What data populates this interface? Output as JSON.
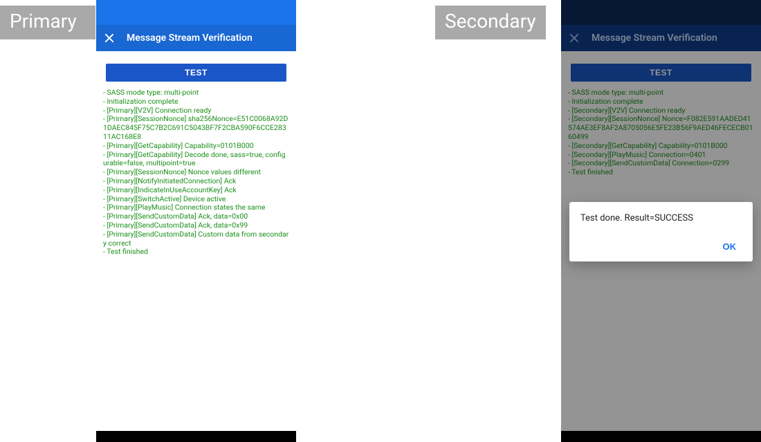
{
  "tags": {
    "primary": "Primary",
    "secondary": "Secondary"
  },
  "colors": {
    "tag_bg": "#a9a9a9",
    "status_bright": "#1a73e8",
    "status_dark": "#0b2a5b",
    "appbar_mid": "#1967d2",
    "appbar_deep": "#0f3d8a",
    "test_btn": "#1a56c7",
    "log_text": "#1a8f1a",
    "dialog_ok": "#1a73e8",
    "nav_black": "#000000"
  },
  "primary": {
    "title": "Message Stream Verification",
    "test_label": "TEST",
    "log": [
      " - SASS mode type: multi-point",
      " - Initialization complete",
      " - [Primary][V2V] Connection ready",
      " - [Primary][SessionNonce] sha256Nonce=E51C0068A92D1DAEC845F75C7B2C691C5043BF7F2CBA590F6CCE28311AC168E8",
      " - [Primary][GetCapability] Capability=0101B000",
      " - [Primary][GetCapability] Decode done, sass=true, configurable=false, multipoint=true",
      " - [Primary][SessionNonce] Nonce values different",
      " - [Primary][NotifyInitiatedConnection] Ack",
      " - [Primary][IndicateInUseAccountKey] Ack",
      " - [Primary][SwitchActive] Device active",
      " - [Primary][PlayMusic] Connection states the same",
      " - [Primary][SendCustomData] Ack, data=0x00",
      " - [Primary][SendCustomData] Ack, data=0x99",
      " - [Primary][SendCustomData] Custom data from secondary correct",
      " - Test finished"
    ]
  },
  "secondary": {
    "title": "Message Stream Verification",
    "test_label": "TEST",
    "log": [
      " - SASS mode type: multi-point",
      " - Initialization complete",
      " - [Secondary][V2V] Connection ready",
      " - [Secondary][SessionNonce] Nonce=F082E591AADED41574AE3EF8AF2A8705056E5FE23B56F9AED46FECECB0160499",
      " - [Secondary][GetCapability] Capability=0101B000",
      " - [Secondary][PlayMusic] Connection=0401",
      " - [Secondary][SendCustomData] Connection=0299",
      " - Test finished"
    ],
    "dialog": {
      "message": "Test done. Result=SUCCESS",
      "ok": "OK"
    }
  }
}
